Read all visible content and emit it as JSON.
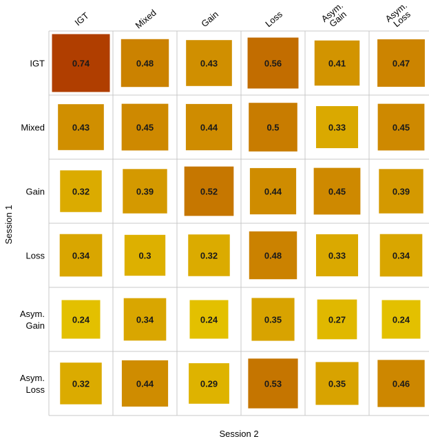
{
  "chart_data": {
    "type": "heatmap",
    "xlabel": "Session 2",
    "ylabel": "Session 1",
    "x_categories": [
      [
        "IGT"
      ],
      [
        "Mixed"
      ],
      [
        "Gain"
      ],
      [
        "Loss"
      ],
      [
        "Asym.",
        "Gain"
      ],
      [
        "Asym.",
        "Loss"
      ]
    ],
    "y_categories": [
      [
        "IGT"
      ],
      [
        "Mixed"
      ],
      [
        "Gain"
      ],
      [
        "Loss"
      ],
      [
        "Asym.",
        "Gain"
      ],
      [
        "Asym.",
        "Loss"
      ]
    ],
    "values": [
      [
        0.74,
        0.48,
        0.43,
        0.56,
        0.41,
        0.47
      ],
      [
        0.43,
        0.45,
        0.44,
        0.5,
        0.33,
        0.45
      ],
      [
        0.32,
        0.39,
        0.52,
        0.44,
        0.45,
        0.39
      ],
      [
        0.34,
        0.3,
        0.32,
        0.48,
        0.33,
        0.34
      ],
      [
        0.24,
        0.34,
        0.24,
        0.35,
        0.27,
        0.24
      ],
      [
        0.32,
        0.44,
        0.29,
        0.53,
        0.35,
        0.46
      ]
    ],
    "value_range": [
      0.24,
      0.74
    ],
    "color_low": "#e3c000",
    "color_high": "#b03e00",
    "grid": true,
    "encoding": "square size and color scale with value"
  }
}
